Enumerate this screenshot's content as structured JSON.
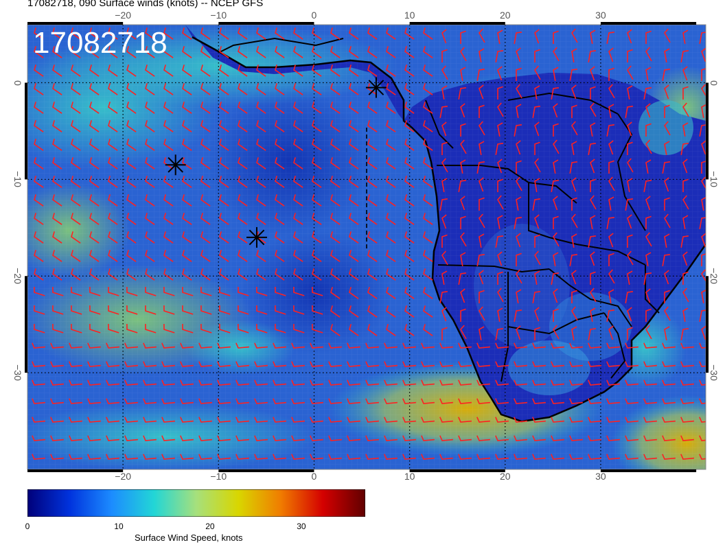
{
  "title": "17082718, 090 Surface winds (knots) -- NCEP GFS",
  "stamp": "17082718",
  "x_ticks_top": [
    "−20",
    "−10",
    "0",
    "10",
    "20",
    "30"
  ],
  "x_ticks_bottom": [
    "−20",
    "−10",
    "0",
    "10",
    "20",
    "30"
  ],
  "y_ticks": [
    "0",
    "−10",
    "−20",
    "−30"
  ],
  "lon_range": [
    -30,
    41
  ],
  "lat_range": [
    6,
    -40
  ],
  "x_tick_values": [
    -20,
    -10,
    0,
    10,
    20,
    30
  ],
  "y_tick_values": [
    0,
    -10,
    -20,
    -30
  ],
  "storm_markers": [
    {
      "lon": 6.5,
      "lat": -0.5
    },
    {
      "lon": -14.5,
      "lat": -8.5
    },
    {
      "lon": -6.0,
      "lat": -16.0
    }
  ],
  "colors": {
    "ocean_base": "#1f5ccf",
    "land_base": "#1a2fb8",
    "barb": "#ff2020",
    "coast": "#000000"
  },
  "colorbar": {
    "title": "Surface Wind Speed, knots",
    "min": 0,
    "max": 37,
    "tick_labels": [
      "0",
      "10",
      "20",
      "30"
    ],
    "tick_values": [
      0,
      10,
      20,
      30
    ],
    "stops": [
      "#00007a",
      "#0033dd",
      "#1c8cff",
      "#22d6d6",
      "#a6e07c",
      "#d9d600",
      "#f07c00",
      "#d40000",
      "#600000"
    ]
  }
}
